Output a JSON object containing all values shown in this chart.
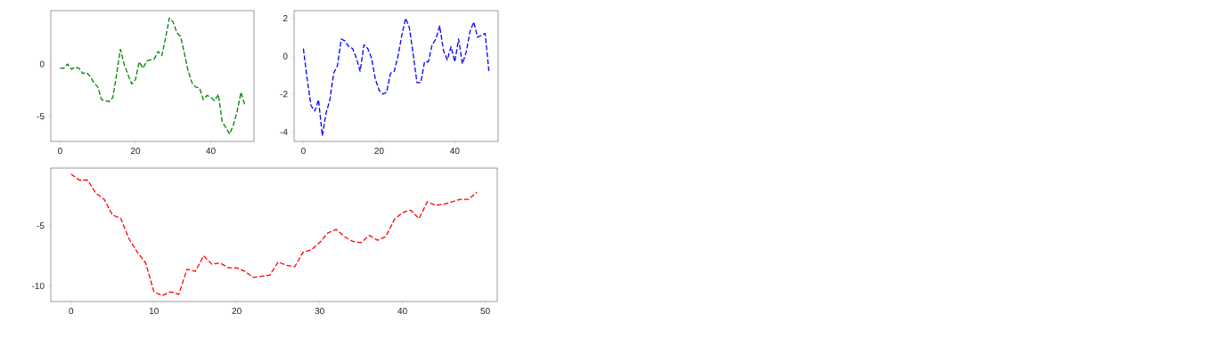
{
  "chart_data": [
    {
      "type": "line",
      "x": [
        0,
        1,
        2,
        3,
        4,
        5,
        6,
        7,
        8,
        9,
        10,
        11,
        12,
        13,
        14,
        15,
        16,
        17,
        18,
        19,
        20,
        21,
        22,
        23,
        24,
        25,
        26,
        27,
        28,
        29,
        30,
        31,
        32,
        33,
        34,
        35,
        36,
        37,
        38,
        39,
        40,
        41,
        42,
        43,
        44,
        45,
        46,
        47,
        48,
        49
      ],
      "series": [
        {
          "color": "#008000",
          "values": [
            -0.4,
            -0.4,
            0.0,
            -0.5,
            -0.3,
            -0.4,
            -0.9,
            -0.8,
            -1.2,
            -1.8,
            -2.2,
            -3.4,
            -3.5,
            -3.6,
            -3.2,
            -1.0,
            1.4,
            0.0,
            -1.0,
            -1.9,
            -1.5,
            0.2,
            -0.4,
            0.3,
            0.4,
            0.5,
            1.2,
            0.8,
            2.5,
            4.4,
            4.0,
            3.0,
            2.6,
            1.0,
            -0.7,
            -1.8,
            -2.2,
            -2.3,
            -3.4,
            -3.0,
            -3.2,
            -3.5,
            -2.9,
            -5.5,
            -6.1,
            -6.7,
            -5.8,
            -4.5,
            -2.7,
            -3.9
          ]
        }
      ],
      "xlim": [
        -2.45,
        51.45
      ],
      "ylim": [
        -7.4,
        5.1
      ],
      "xticks": [
        0,
        20,
        40
      ],
      "yticks": [
        -5,
        0
      ],
      "line_style": "dashed",
      "marker": "none"
    },
    {
      "type": "line",
      "x": [
        0,
        1,
        2,
        3,
        4,
        5,
        6,
        7,
        8,
        9,
        10,
        11,
        12,
        13,
        14,
        15,
        16,
        17,
        18,
        19,
        20,
        21,
        22,
        23,
        24,
        25,
        26,
        27,
        28,
        29,
        30,
        31,
        32,
        33,
        34,
        35,
        36,
        37,
        38,
        39,
        40,
        41,
        42,
        43,
        44,
        45,
        46,
        47,
        48,
        49
      ],
      "series": [
        {
          "color": "#0000ff",
          "values": [
            0.4,
            -1.2,
            -2.6,
            -2.9,
            -2.3,
            -4.2,
            -3.0,
            -2.3,
            -0.9,
            -0.5,
            0.9,
            0.8,
            0.5,
            0.4,
            -0.1,
            -0.8,
            0.6,
            0.4,
            -0.1,
            -1.2,
            -1.8,
            -2.0,
            -1.9,
            -0.9,
            -0.8,
            0.0,
            1.1,
            2.0,
            1.5,
            0.1,
            -1.4,
            -1.4,
            -0.3,
            -0.3,
            0.6,
            0.9,
            1.6,
            0.3,
            -0.2,
            0.5,
            -0.3,
            0.9,
            -0.4,
            0.2,
            1.3,
            1.8,
            1.0,
            1.1,
            1.2,
            -0.8
          ]
        }
      ],
      "xlim": [
        -2.45,
        51.45
      ],
      "ylim": [
        -4.5,
        2.4
      ],
      "xticks": [
        0,
        20,
        40
      ],
      "yticks": [
        -4,
        -2,
        0,
        2
      ],
      "line_style": "dashed",
      "marker": "none"
    },
    {
      "type": "line",
      "x": [
        0,
        1,
        2,
        3,
        4,
        5,
        6,
        7,
        8,
        9,
        10,
        11,
        12,
        13,
        14,
        15,
        16,
        17,
        18,
        19,
        20,
        21,
        22,
        23,
        24,
        25,
        26,
        27,
        28,
        29,
        30,
        31,
        32,
        33,
        34,
        35,
        36,
        37,
        38,
        39,
        40,
        41,
        42,
        43,
        44,
        45,
        46,
        47,
        48,
        49
      ],
      "series": [
        {
          "color": "#ff0000",
          "values": [
            -0.7,
            -1.2,
            -1.2,
            -2.3,
            -2.8,
            -4.1,
            -4.4,
            -6.1,
            -7.2,
            -8.1,
            -10.5,
            -10.8,
            -10.5,
            -10.7,
            -8.6,
            -8.8,
            -7.5,
            -8.2,
            -8.1,
            -8.5,
            -8.5,
            -8.8,
            -9.3,
            -9.2,
            -9.1,
            -8.0,
            -8.3,
            -8.4,
            -7.2,
            -7.0,
            -6.4,
            -5.6,
            -5.3,
            -5.9,
            -6.3,
            -6.4,
            -5.8,
            -6.2,
            -5.9,
            -4.5,
            -3.9,
            -3.7,
            -4.4,
            -3.0,
            -3.3,
            -3.2,
            -3.0,
            -2.8,
            -2.8,
            -2.2
          ]
        }
      ],
      "xlim": [
        -2.45,
        51.45
      ],
      "ylim": [
        -11.3,
        -0.2
      ],
      "xticks": [
        0,
        10,
        20,
        30,
        40,
        50
      ],
      "yticks": [
        -10,
        -5
      ],
      "line_style": "dashed",
      "marker": "none"
    }
  ]
}
